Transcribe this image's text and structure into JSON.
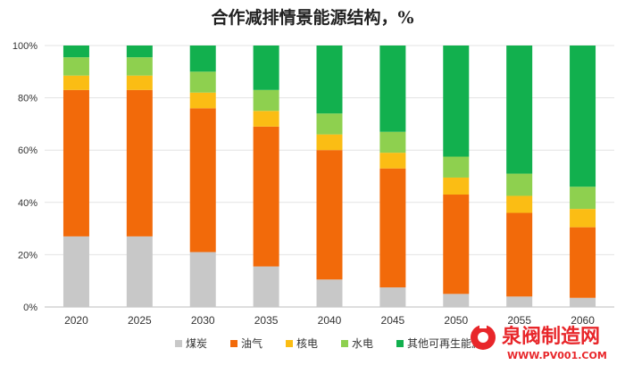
{
  "chart_data": {
    "type": "bar",
    "stacked": true,
    "title": "合作减排情景能源结构，%",
    "categories": [
      "2020",
      "2025",
      "2030",
      "2035",
      "2040",
      "2045",
      "2050",
      "2055",
      "2060"
    ],
    "ylim": [
      0,
      100
    ],
    "y_ticks": [
      "0%",
      "20%",
      "40%",
      "60%",
      "80%",
      "100%"
    ],
    "grid": true,
    "legend_position": "bottom",
    "series": [
      {
        "name": "煤炭",
        "color": "#c8c8c8",
        "values": [
          27,
          27,
          21,
          15.5,
          10.5,
          7.5,
          5,
          4,
          3.5
        ]
      },
      {
        "name": "油气",
        "color": "#f26a0a",
        "values": [
          56,
          56,
          55,
          53.5,
          49.5,
          45.5,
          38,
          32,
          27
        ]
      },
      {
        "name": "核电",
        "color": "#fbbd14",
        "values": [
          5.5,
          5.5,
          6,
          6,
          6,
          6,
          6.5,
          6.5,
          7
        ]
      },
      {
        "name": "水电",
        "color": "#8ed04f",
        "values": [
          7,
          7,
          8,
          8,
          8,
          8,
          8,
          8.5,
          8.5
        ]
      },
      {
        "name": "其他可再生能源",
        "color": "#12b04e",
        "values": [
          4.5,
          4.5,
          10,
          17,
          26,
          33,
          42.5,
          49,
          54
        ]
      }
    ]
  },
  "watermark": {
    "text": "泉阀制造网",
    "url": "WWW.PV001.COM",
    "color": "#e8262a"
  }
}
